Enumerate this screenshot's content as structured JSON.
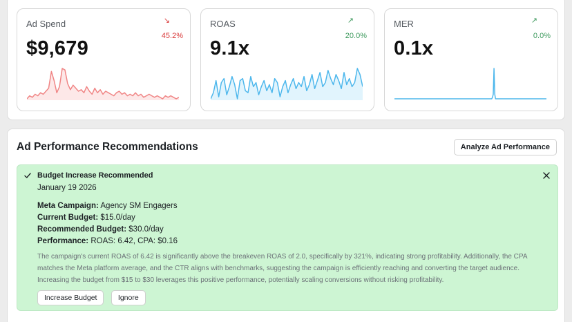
{
  "metrics": [
    {
      "label": "Ad Spend",
      "value": "$9,679",
      "change": "45.2%",
      "direction": "down",
      "arrow": "↘",
      "color": "#f08585",
      "fill": "#fde8e8",
      "series": [
        10,
        12,
        11,
        13,
        12,
        14,
        13,
        15,
        17,
        28,
        22,
        14,
        18,
        30,
        29,
        20,
        16,
        19,
        17,
        15,
        16,
        14,
        18,
        15,
        13,
        17,
        14,
        16,
        13,
        15,
        14,
        13,
        12,
        14,
        15,
        13,
        14,
        12,
        13,
        12,
        14,
        12,
        13,
        11,
        12,
        13,
        12,
        11,
        12,
        11,
        10,
        12,
        11,
        12,
        11,
        10,
        11
      ]
    },
    {
      "label": "ROAS",
      "value": "9.1x",
      "change": "20.0%",
      "direction": "up",
      "arrow": "↗",
      "color": "#4db7ec",
      "fill": "#e1f4fd",
      "series": [
        6,
        9,
        15,
        7,
        14,
        16,
        8,
        12,
        17,
        13,
        6,
        15,
        16,
        10,
        9,
        17,
        12,
        14,
        8,
        12,
        15,
        10,
        13,
        9,
        16,
        14,
        7,
        12,
        15,
        9,
        13,
        16,
        11,
        14,
        12,
        17,
        10,
        13,
        18,
        11,
        15,
        19,
        12,
        14,
        20,
        16,
        13,
        18,
        15,
        11,
        19,
        13,
        16,
        12,
        14,
        21,
        18,
        12
      ]
    },
    {
      "label": "MER",
      "value": "0.1x",
      "change": "0.0%",
      "direction": "up",
      "arrow": "↗",
      "color": "#4db7ec",
      "fill": "none",
      "series": [
        0,
        0,
        0,
        0,
        0,
        0,
        0,
        0,
        0,
        0,
        0,
        0,
        0,
        0,
        0,
        0,
        0,
        0,
        0,
        0,
        0,
        0,
        0,
        0,
        0,
        0,
        0,
        0,
        0,
        0,
        0,
        0,
        0,
        0,
        0,
        0,
        0,
        0,
        0,
        0,
        0,
        0,
        0,
        0,
        0,
        0,
        0,
        0,
        0,
        0,
        0,
        0,
        0,
        0,
        0,
        0,
        0,
        0,
        0,
        0,
        0,
        0,
        0,
        0,
        0,
        0,
        0,
        0,
        0,
        0,
        0,
        0,
        0,
        0,
        0,
        0,
        0,
        0,
        0,
        0,
        0,
        0,
        0,
        0,
        0,
        0,
        0,
        0,
        0,
        0,
        0,
        0,
        0,
        0,
        0,
        0,
        0,
        0,
        0,
        0,
        0,
        0,
        0,
        0,
        0,
        0,
        0,
        0,
        0,
        0,
        0,
        0,
        0,
        0,
        0,
        0,
        0,
        0,
        0,
        0,
        0,
        0,
        0,
        0,
        0,
        0,
        0,
        0,
        0,
        1,
        3,
        20,
        3,
        0,
        0,
        0,
        0,
        0,
        0,
        0,
        0,
        0,
        0,
        0,
        0,
        0,
        0,
        0,
        0,
        0,
        0,
        0,
        0,
        0,
        0,
        0,
        0,
        0,
        0,
        0,
        0,
        0,
        0,
        0,
        0,
        0,
        0,
        0,
        0,
        0,
        0,
        0,
        0,
        0,
        0,
        0,
        0,
        0,
        0,
        0,
        0,
        0,
        0,
        0,
        0,
        0,
        0,
        0,
        0,
        0,
        0,
        0,
        0,
        0,
        0,
        0,
        0,
        0,
        0,
        0,
        0
      ]
    }
  ],
  "recommendations": {
    "title": "Ad Performance Recommendations",
    "analyze_label": "Analyze Ad Performance",
    "card": {
      "heading": "Budget Increase Recommended",
      "date": "January 19 2026",
      "details": [
        {
          "key": "Meta Campaign:",
          "value": "Agency SM Engagers"
        },
        {
          "key": "Current Budget:",
          "value": "$15.0/day"
        },
        {
          "key": "Recommended Budget:",
          "value": "$30.0/day"
        },
        {
          "key": "Performance:",
          "value": "ROAS: 6.42, CPA: $0.16"
        }
      ],
      "body": "The campaign's current ROAS of 6.42 is significantly above the breakeven ROAS of 2.0, specifically by 321%, indicating strong profitability. Additionally, the CPA matches the Meta platform average, and the CTR aligns with benchmarks, suggesting the campaign is efficiently reaching and converting the target audience. Increasing the budget from $15 to $30 leverages this positive performance, potentially scaling conversions without risking profitability.",
      "primary_action": "Increase Budget",
      "secondary_action": "Ignore",
      "bg_color": "#cdf5d3"
    }
  }
}
